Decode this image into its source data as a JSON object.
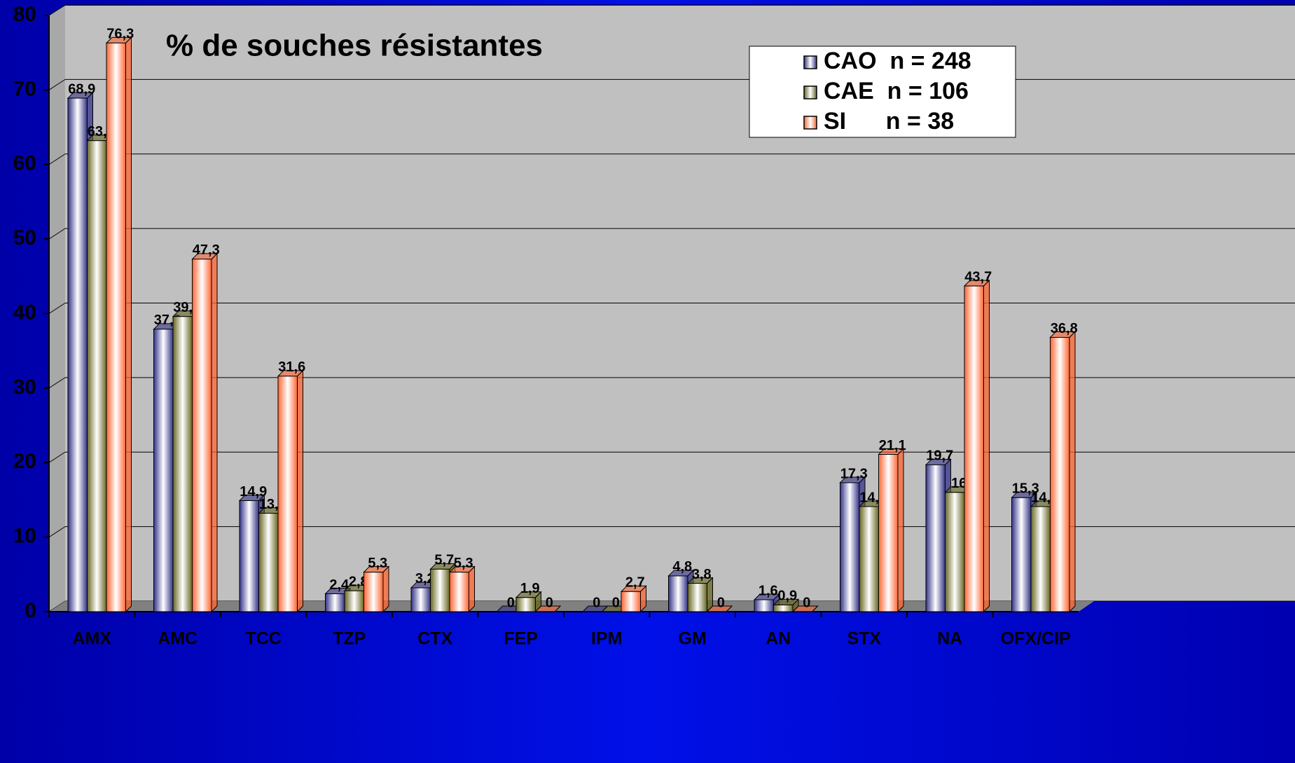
{
  "chart_data": {
    "type": "bar3d",
    "title": "% de souches résistantes",
    "categories": [
      "AMX",
      "AMC",
      "TCC",
      "TZP",
      "CTX",
      "FEP",
      "IPM",
      "GM",
      "AN",
      "STX",
      "NA",
      "OFX/CIP"
    ],
    "series": [
      {
        "name": "CAO  n = 248",
        "color": "#333388",
        "values": [
          68.9,
          37.9,
          14.9,
          2.4,
          3.2,
          0,
          0,
          4.8,
          1.6,
          17.3,
          19.7,
          15.3
        ],
        "value_labels": [
          "68,9",
          "37,9",
          "14,9",
          "2,4",
          "3,2",
          "0",
          "0",
          "4,8",
          "1,6",
          "17,3",
          "19,7",
          "15,3"
        ]
      },
      {
        "name": "CAE  n = 106",
        "color": "#666622",
        "values": [
          63.2,
          39.6,
          13.2,
          2.8,
          5.7,
          1.9,
          0,
          3.8,
          0.9,
          14.1,
          16,
          14.1
        ],
        "value_labels": [
          "63,2",
          "39,6",
          "13,2",
          "2,8",
          "5,7",
          "1,9",
          "0",
          "3,8",
          "0,9",
          "14,1",
          "16",
          "14,1"
        ]
      },
      {
        "name": "SI      n = 38",
        "color": "#ff6633",
        "values": [
          76.3,
          47.3,
          31.6,
          5.3,
          5.3,
          0,
          2.7,
          0,
          0,
          21.1,
          43.7,
          36.8
        ],
        "value_labels": [
          "76,3",
          "47,3",
          "31,6",
          "5,3",
          "5,3",
          "0",
          "2,7",
          "0",
          "0",
          "21,1",
          "43,7",
          "36,8"
        ]
      }
    ],
    "ylim": [
      0,
      80
    ],
    "yticks": [
      0,
      10,
      20,
      30,
      40,
      50,
      60,
      70,
      80
    ],
    "grid": true,
    "legend": "upper right"
  }
}
